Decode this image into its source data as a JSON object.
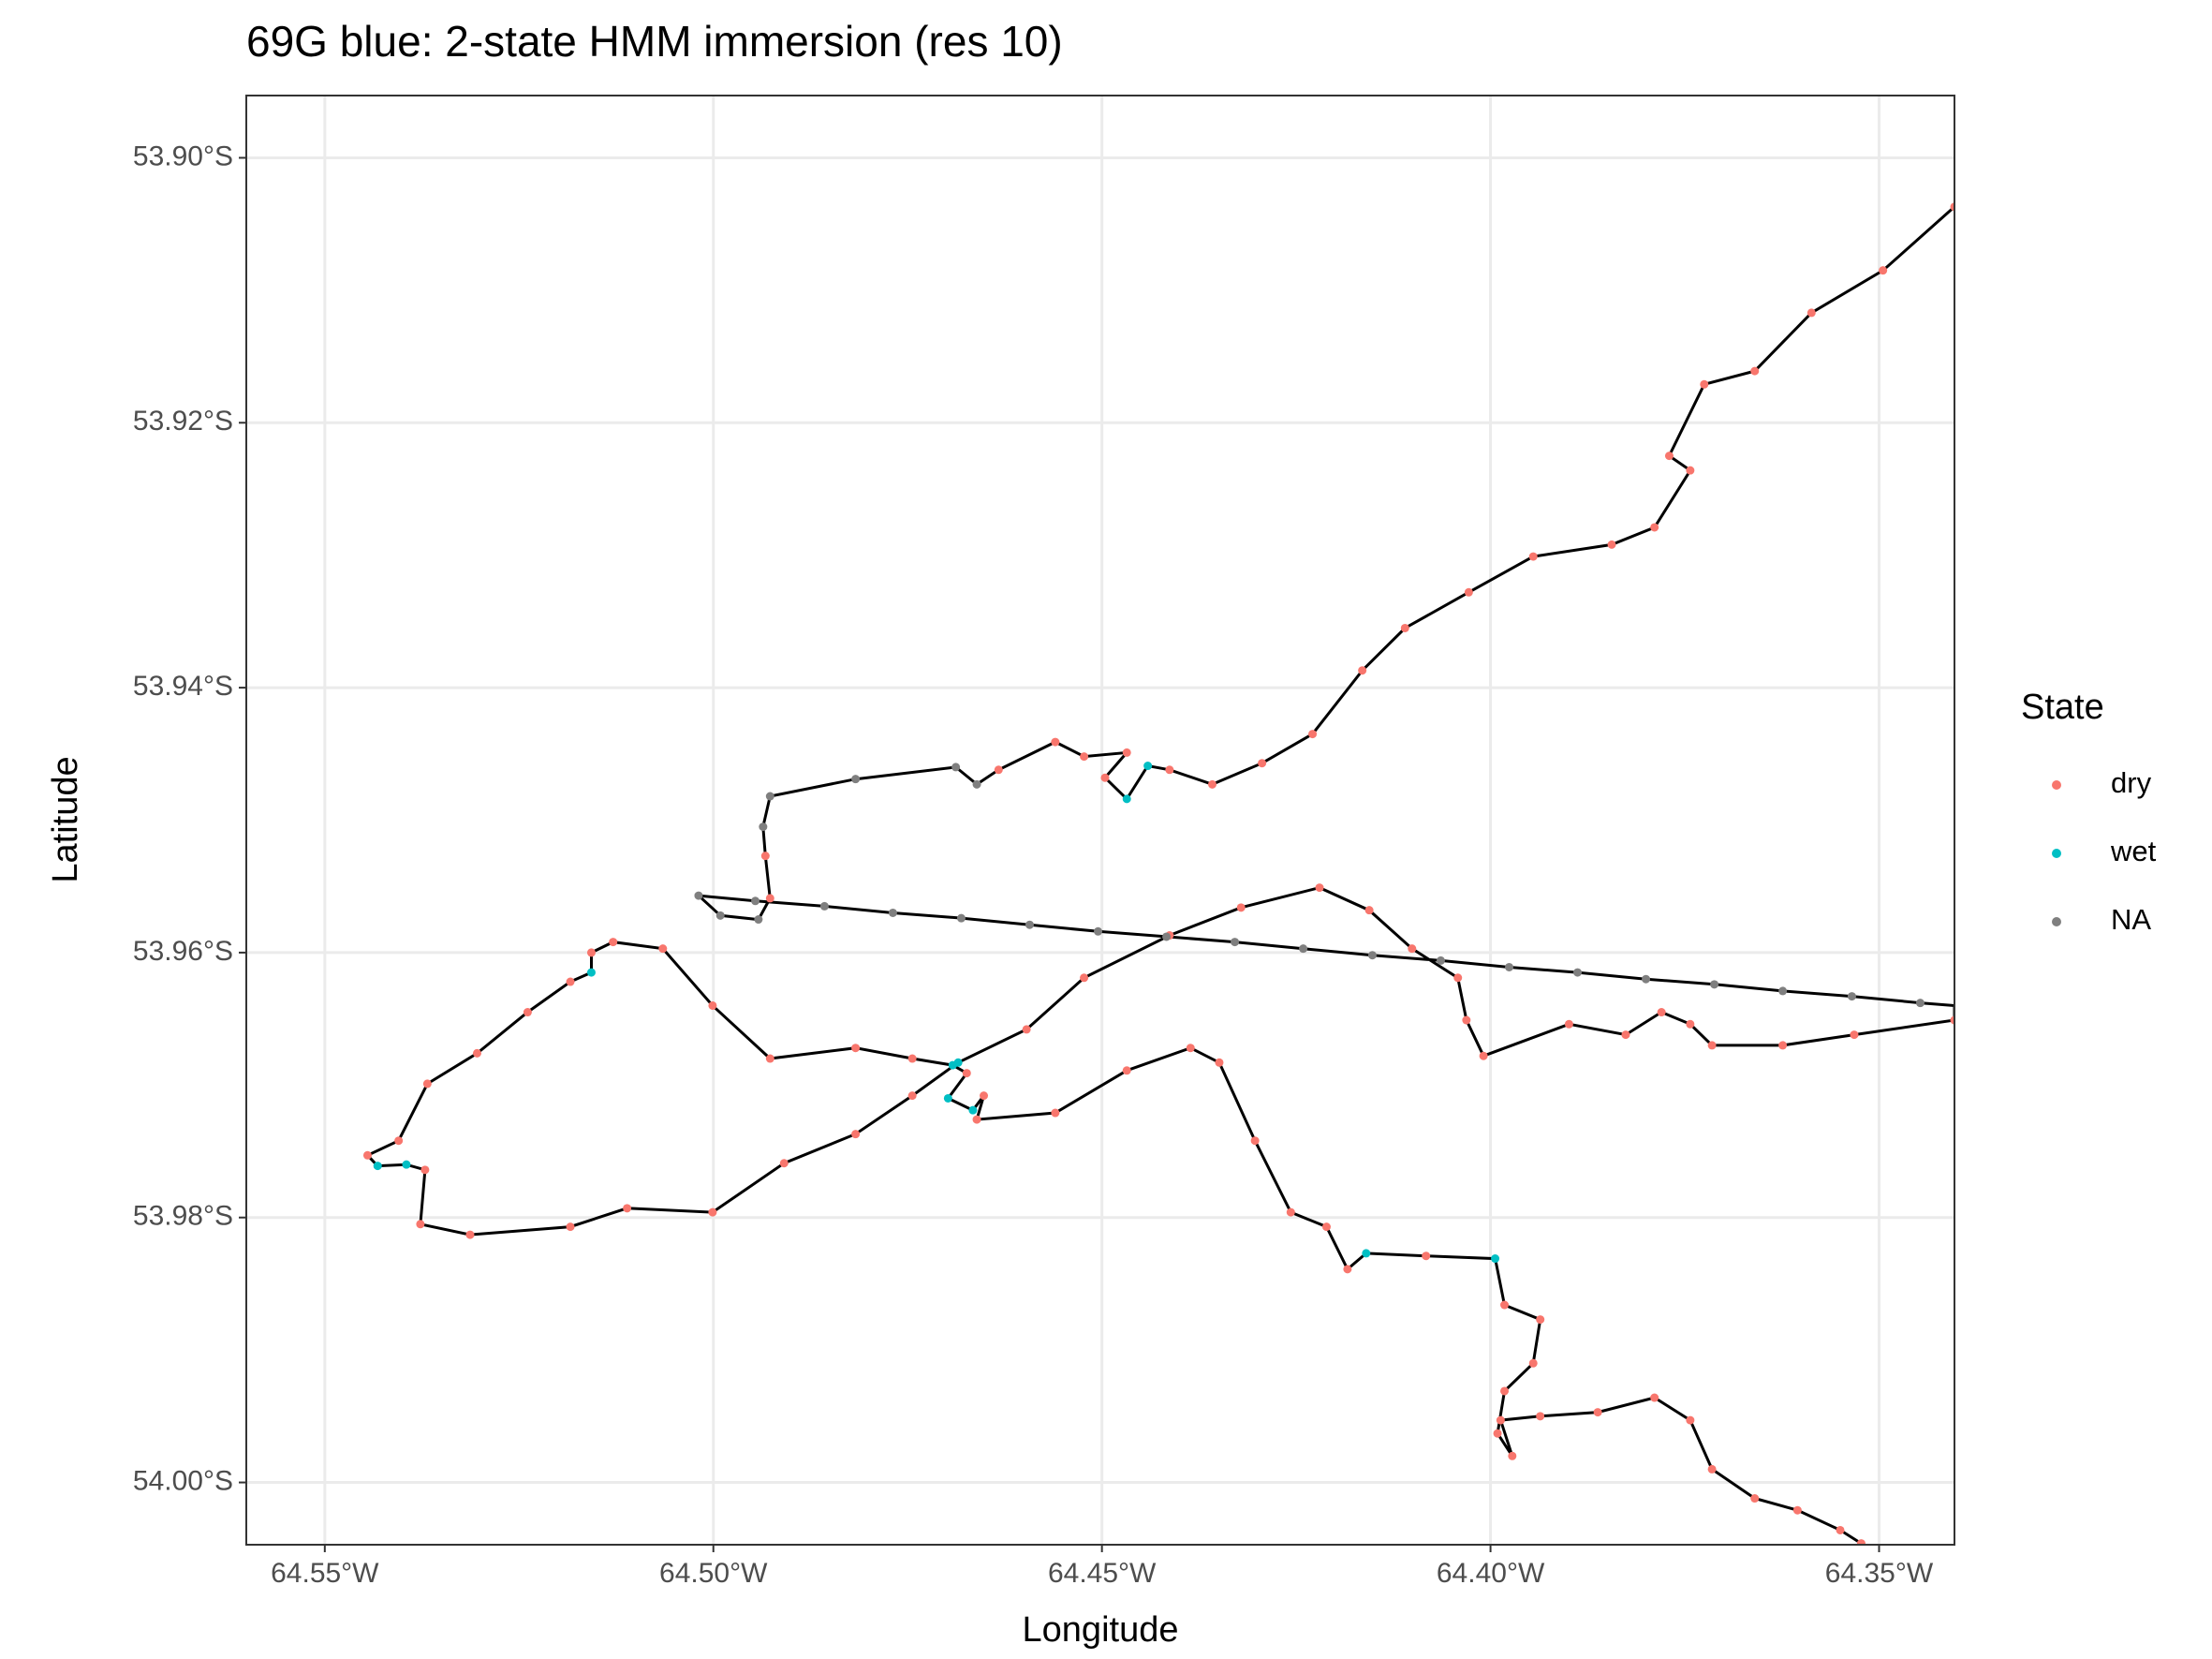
{
  "chart_data": {
    "type": "track",
    "title": "69G blue: 2-state HMM immersion (res 10)",
    "x_label": "Longitude",
    "y_label": "Latitude",
    "legend_title": "State",
    "grid": true,
    "xlim": [
      -64.5601,
      -64.3403
    ],
    "ylim": [
      -54.0047,
      -53.8953
    ],
    "xticks": [
      {
        "value": -64.55,
        "label": "64.55°W"
      },
      {
        "value": -64.5,
        "label": "64.50°W"
      },
      {
        "value": -64.45,
        "label": "64.45°W"
      },
      {
        "value": -64.4,
        "label": "64.40°W"
      },
      {
        "value": -64.35,
        "label": "64.35°W"
      }
    ],
    "yticks": [
      {
        "value": -53.9,
        "label": "53.90°S"
      },
      {
        "value": -53.92,
        "label": "53.92°S"
      },
      {
        "value": -53.94,
        "label": "53.94°S"
      },
      {
        "value": -53.96,
        "label": "53.96°S"
      },
      {
        "value": -53.98,
        "label": "53.98°S"
      },
      {
        "value": -54.0,
        "label": "54.00°S"
      }
    ],
    "track": {
      "color": "#000000",
      "x": [
        -64.3403,
        -64.3495,
        -64.3587,
        -64.366,
        -64.3725,
        -64.377,
        -64.3743,
        -64.3789,
        -64.3844,
        -64.3945,
        -64.4028,
        -64.411,
        -64.4165,
        -64.4229,
        -64.4294,
        -64.4358,
        -64.4413,
        -64.4441,
        -64.4468,
        -64.4496,
        -64.4468,
        -64.4523,
        -64.456,
        -64.4633,
        -64.4661,
        -64.4688,
        -64.4817,
        -64.4927,
        -64.4936,
        -64.4933,
        -64.4927,
        -64.4942,
        -64.4991,
        -64.5019,
        -64.4946,
        -64.4857,
        -64.4769,
        -64.4681,
        -64.4593,
        -64.4505,
        -64.4417,
        -64.4329,
        -64.4241,
        -64.4152,
        -64.4064,
        -64.3976,
        -64.3888,
        -64.38,
        -64.3712,
        -64.3624,
        -64.3535,
        -64.3447,
        -64.3403,
        -64.3403,
        -64.3532,
        -64.3624,
        -64.3715,
        -64.3743,
        -64.378,
        -64.3826,
        -64.3899,
        -64.4009,
        -64.4031,
        -64.4042,
        -64.4101,
        -64.4156,
        -64.422,
        -64.4321,
        -64.4413,
        -64.4523,
        -64.4597,
        -64.4685,
        -64.4744,
        -64.4817,
        -64.4909,
        -64.5001,
        -64.5111,
        -64.5184,
        -64.5313,
        -64.5377,
        -64.5371,
        -64.5395,
        -64.5432,
        -64.5445,
        -64.5405,
        -64.5368,
        -64.5304,
        -64.5239,
        -64.5184,
        -64.5157,
        -64.5157,
        -64.5129,
        -64.5065,
        -64.5001,
        -64.4927,
        -64.4817,
        -64.4744,
        -64.4692,
        -64.4674,
        -64.4698,
        -64.4666,
        -64.4652,
        -64.4661,
        -64.456,
        -64.4468,
        -64.4386,
        -64.4349,
        -64.4303,
        -64.4257,
        -64.4211,
        -64.4184,
        -64.416,
        -64.4083,
        -64.3994,
        -64.3982,
        -64.3936,
        -64.3945,
        -64.3982,
        -64.3991,
        -64.3972,
        -64.3987,
        -64.3936,
        -64.3862,
        -64.3789,
        -64.3743,
        -64.3715,
        -64.366,
        -64.3605,
        -64.355,
        -64.3523
      ],
      "values": [
        -53.9037,
        -53.9085,
        -53.9117,
        -53.9161,
        -53.9171,
        -53.9225,
        -53.9236,
        -53.9279,
        -53.9292,
        -53.9301,
        -53.9328,
        -53.9355,
        -53.9387,
        -53.9435,
        -53.9457,
        -53.9473,
        -53.9462,
        -53.9459,
        -53.9484,
        -53.9468,
        -53.9449,
        -53.9452,
        -53.9441,
        -53.9462,
        -53.9473,
        -53.946,
        -53.9469,
        -53.9482,
        -53.9505,
        -53.9527,
        -53.9559,
        -53.9575,
        -53.9572,
        -53.9557,
        -53.9561,
        -53.9565,
        -53.957,
        -53.9574,
        -53.9579,
        -53.9584,
        -53.9588,
        -53.9592,
        -53.9597,
        -53.9602,
        -53.9606,
        -53.9611,
        -53.9615,
        -53.962,
        -53.9624,
        -53.9629,
        -53.9633,
        -53.9638,
        -53.964,
        -53.9651,
        -53.9662,
        -53.967,
        -53.967,
        -53.9654,
        -53.9645,
        -53.9662,
        -53.9654,
        -53.9678,
        -53.9651,
        -53.9619,
        -53.9597,
        -53.9568,
        -53.9551,
        -53.9566,
        -53.9587,
        -53.9619,
        -53.9658,
        -53.9683,
        -53.9708,
        -53.9737,
        -53.9759,
        -53.9796,
        -53.9793,
        -53.9807,
        -53.9813,
        -53.9805,
        -53.9764,
        -53.976,
        -53.9761,
        -53.9753,
        -53.9742,
        -53.9699,
        -53.9676,
        -53.9645,
        -53.9622,
        -53.9615,
        -53.96,
        -53.9592,
        -53.9597,
        -53.964,
        -53.968,
        -53.9672,
        -53.968,
        -53.9685,
        -53.9691,
        -53.971,
        -53.9719,
        -53.9708,
        -53.9726,
        -53.9721,
        -53.9689,
        -53.9672,
        -53.9683,
        -53.9742,
        -53.9796,
        -53.9807,
        -53.9839,
        -53.9827,
        -53.9829,
        -53.9831,
        -53.9866,
        -53.9877,
        -53.991,
        -53.9931,
        -53.9963,
        -53.998,
        -53.9953,
        -53.995,
        -53.9947,
        -53.9936,
        -53.9953,
        -53.999,
        -54.0012,
        -54.0021,
        -54.0036,
        -54.0046
      ]
    },
    "series": [
      {
        "name": "dry",
        "color": "#F8766D",
        "x": [
          -64.3403,
          -64.3495,
          -64.3587,
          -64.366,
          -64.3725,
          -64.377,
          -64.3743,
          -64.3789,
          -64.3844,
          -64.3945,
          -64.4028,
          -64.411,
          -64.4165,
          -64.4229,
          -64.4294,
          -64.4358,
          -64.4413,
          -64.4496,
          -64.4468,
          -64.4523,
          -64.456,
          -64.4633,
          -64.4933,
          -64.4927,
          -64.3403,
          -64.3532,
          -64.3624,
          -64.3715,
          -64.3743,
          -64.378,
          -64.3826,
          -64.3899,
          -64.4009,
          -64.4031,
          -64.4042,
          -64.4101,
          -64.4156,
          -64.422,
          -64.4321,
          -64.4413,
          -64.4523,
          -64.4597,
          -64.4744,
          -64.4817,
          -64.4909,
          -64.5001,
          -64.5111,
          -64.5184,
          -64.5313,
          -64.5377,
          -64.5371,
          -64.5445,
          -64.5405,
          -64.5368,
          -64.5304,
          -64.5239,
          -64.5184,
          -64.5157,
          -64.5129,
          -64.5065,
          -64.5001,
          -64.4927,
          -64.4817,
          -64.4744,
          -64.4674,
          -64.4652,
          -64.4661,
          -64.456,
          -64.4468,
          -64.4386,
          -64.4349,
          -64.4303,
          -64.4257,
          -64.4211,
          -64.4184,
          -64.4083,
          -64.3982,
          -64.3936,
          -64.3945,
          -64.3982,
          -64.3991,
          -64.3972,
          -64.3987,
          -64.3936,
          -64.3862,
          -64.3789,
          -64.3743,
          -64.3715,
          -64.366,
          -64.3605,
          -64.355,
          -64.3523
        ],
        "values": [
          -53.9037,
          -53.9085,
          -53.9117,
          -53.9161,
          -53.9171,
          -53.9225,
          -53.9236,
          -53.9279,
          -53.9292,
          -53.9301,
          -53.9328,
          -53.9355,
          -53.9387,
          -53.9435,
          -53.9457,
          -53.9473,
          -53.9462,
          -53.9468,
          -53.9449,
          -53.9452,
          -53.9441,
          -53.9462,
          -53.9527,
          -53.9559,
          -53.9651,
          -53.9662,
          -53.967,
          -53.967,
          -53.9654,
          -53.9645,
          -53.9662,
          -53.9654,
          -53.9678,
          -53.9651,
          -53.9619,
          -53.9597,
          -53.9568,
          -53.9551,
          -53.9566,
          -53.9587,
          -53.9619,
          -53.9658,
          -53.9708,
          -53.9737,
          -53.9759,
          -53.9796,
          -53.9793,
          -53.9807,
          -53.9813,
          -53.9805,
          -53.9764,
          -53.9753,
          -53.9742,
          -53.9699,
          -53.9676,
          -53.9645,
          -53.9622,
          -53.96,
          -53.9592,
          -53.9597,
          -53.964,
          -53.968,
          -53.9672,
          -53.968,
          -53.9691,
          -53.9708,
          -53.9726,
          -53.9721,
          -53.9689,
          -53.9672,
          -53.9683,
          -53.9742,
          -53.9796,
          -53.9807,
          -53.9839,
          -53.9829,
          -53.9866,
          -53.9877,
          -53.991,
          -53.9931,
          -53.9963,
          -53.998,
          -53.9953,
          -53.995,
          -53.9947,
          -53.9936,
          -53.9953,
          -53.999,
          -54.0012,
          -54.0021,
          -54.0036,
          -54.0046
        ]
      },
      {
        "name": "wet",
        "color": "#00BFC4",
        "x": [
          -64.4441,
          -64.4468,
          -64.4685,
          -64.5395,
          -64.5432,
          -64.5157,
          -64.4692,
          -64.4698,
          -64.4666,
          -64.416,
          -64.3994
        ],
        "values": [
          -53.9459,
          -53.9484,
          -53.9683,
          -53.976,
          -53.9761,
          -53.9615,
          -53.9685,
          -53.971,
          -53.9719,
          -53.9827,
          -53.9831
        ]
      },
      {
        "name": "NA",
        "color": "#7F7F7F",
        "x": [
          -64.4661,
          -64.4688,
          -64.4817,
          -64.4927,
          -64.4936,
          -64.4942,
          -64.4991,
          -64.5019,
          -64.4946,
          -64.4857,
          -64.4769,
          -64.4681,
          -64.4593,
          -64.4505,
          -64.4417,
          -64.4329,
          -64.4241,
          -64.4152,
          -64.4064,
          -64.3976,
          -64.3888,
          -64.38,
          -64.3712,
          -64.3624,
          -64.3535,
          -64.3447
        ],
        "values": [
          -53.9473,
          -53.946,
          -53.9469,
          -53.9482,
          -53.9505,
          -53.9575,
          -53.9572,
          -53.9557,
          -53.9561,
          -53.9565,
          -53.957,
          -53.9574,
          -53.9579,
          -53.9584,
          -53.9588,
          -53.9592,
          -53.9597,
          -53.9602,
          -53.9606,
          -53.9611,
          -53.9615,
          -53.962,
          -53.9624,
          -53.9629,
          -53.9633,
          -53.9638
        ]
      }
    ]
  }
}
